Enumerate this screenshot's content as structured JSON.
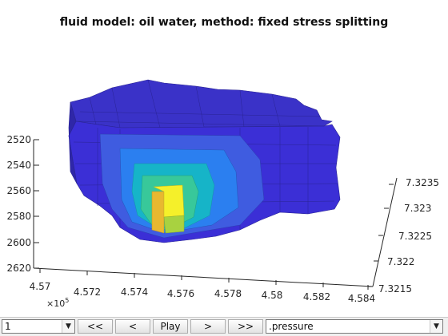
{
  "title": "fluid model: oil water, method: fixed stress splitting",
  "z_axis": {
    "ticks": [
      "2520",
      "2540",
      "2560",
      "2580",
      "2600",
      "2620"
    ]
  },
  "x_axis": {
    "ticks": [
      "4.57",
      "4.572",
      "4.574",
      "4.576",
      "4.578",
      "4.58",
      "4.582",
      "4.584"
    ],
    "exponent_base": "×10",
    "exponent_power": "5"
  },
  "y_axis": {
    "ticks": [
      "7.3235",
      "7.323",
      "7.3225",
      "7.322",
      "7.3215"
    ]
  },
  "colors": {
    "background": "#ffffff",
    "low_value": "#3b2fd0",
    "mid_value": "#16b4c8",
    "high_value": "#f5f02a"
  },
  "toolbar": {
    "step_select_value": "1",
    "rewind_label": "<<",
    "back_label": "<",
    "play_label": "Play",
    "forward_label": ">",
    "fast_forward_label": ">>",
    "property_select_value": ".pressure"
  }
}
